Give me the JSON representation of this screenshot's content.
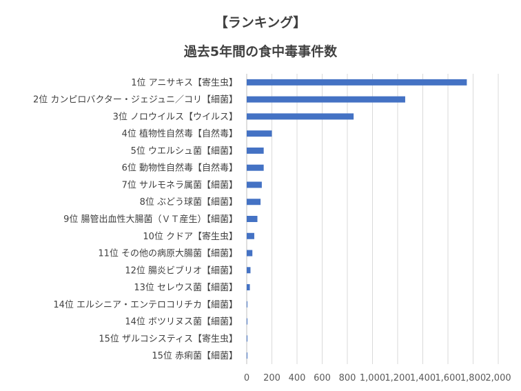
{
  "chart_data": {
    "type": "bar",
    "orientation": "horizontal",
    "title": "【ランキング】",
    "subtitle": "過去5年間の食中毒事件数",
    "xlabel": "",
    "ylabel": "",
    "xlim": [
      0,
      2000
    ],
    "x_ticks": [
      "0",
      "200",
      "400",
      "600",
      "800",
      "1,000",
      "1,200",
      "1,400",
      "1,600",
      "1,800",
      "2,000"
    ],
    "grid": "vertical",
    "legend": "none",
    "categories": [
      "1位 アニサキス【寄生虫】",
      "2位 カンピロバクター・ジェジュニ／コリ【細菌】",
      "3位 ノロウイルス【ウイルス】",
      "4位 植物性自然毒【自然毒】",
      "5位 ウエルシュ菌【細菌】",
      "6位 動物性自然毒【自然毒】",
      "7位 サルモネラ属菌【細菌】",
      "8位 ぶどう球菌【細菌】",
      "9位 腸管出血性大腸菌（ＶＴ産生）【細菌】",
      "10位 クドア【寄生虫】",
      "11位 その他の病原大腸菌【細菌】",
      "12位 腸炎ビブリオ【細菌】",
      "13位 セレウス菌【細菌】",
      "14位 エルシニア・エンテロコリチカ【細菌】",
      "14位 ボツリヌス菌【細菌】",
      "15位 ザルコシスティス【寄生虫】",
      "15位 赤痢菌【細菌】"
    ],
    "values": [
      1750,
      1260,
      850,
      200,
      135,
      135,
      120,
      110,
      85,
      60,
      45,
      30,
      25,
      5,
      5,
      3,
      3
    ],
    "bar_color": "#4472C4",
    "grid_color": "#D9D9D9"
  }
}
